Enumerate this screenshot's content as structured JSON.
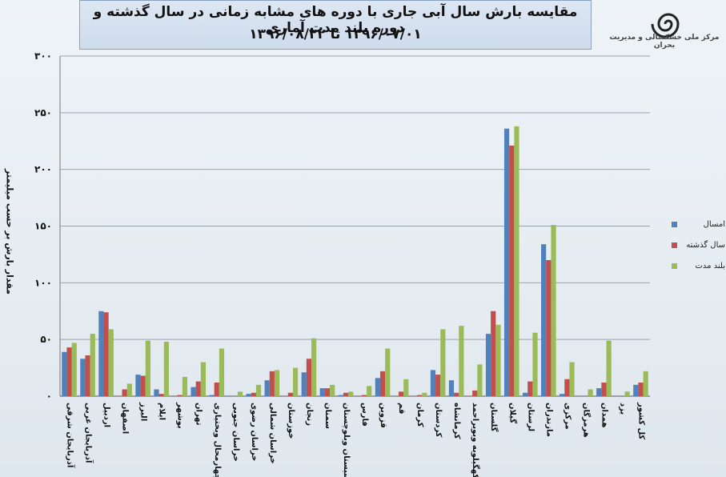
{
  "title": {
    "line1": "مقایسه بارش سال آبی جاری با دوره های مشابه زمانی در سال گذشته و دوره بلند مدت آماری",
    "line2": "۱۳۹۶/۰۷/۰۱ تا ۱۳۹۶/۰۸/۲۲"
  },
  "logo": {
    "caption": "مرکز ملی خشکسالی و مدیریت بحران",
    "icon": "drought-center-spiral-logo"
  },
  "colors": {
    "series_1": "#4f81bd",
    "series_2": "#c0504d",
    "series_3": "#9bbb59"
  },
  "chart_data": {
    "type": "bar",
    "ylabel": "مقدار بارش بر حسب میلیمتر",
    "ylim": [
      0,
      300
    ],
    "yticks": [
      "۰",
      "۵۰",
      "۱۰۰",
      "۱۵۰",
      "۲۰۰",
      "۲۵۰",
      "۳۰۰"
    ],
    "grid": true,
    "legend_position": "right",
    "categories": [
      "آذربایجان شرقی",
      "آذربایجان غربی",
      "اردبیل",
      "اصفهان",
      "البرز",
      "ایلام",
      "بوشهر",
      "تهران",
      "چهارمحال وبختیاری",
      "خراسان جنوبی",
      "خراسان رضوی",
      "خراسان شمالی",
      "خوزستان",
      "زنجان",
      "سمنان",
      "سیستان وبلوچستان",
      "فارس",
      "قزوین",
      "قم",
      "کرمان",
      "کردستان",
      "کرمانشاه",
      "کهگیلویه وبویراحمد",
      "گلستان",
      "گیلان",
      "لرستان",
      "مازندران",
      "مرکزی",
      "هرمزگان",
      "همدان",
      "یزد",
      "کل کشور"
    ],
    "series": [
      {
        "name": "امسال",
        "values": [
          39,
          33,
          75,
          0,
          19,
          6,
          0,
          8,
          1,
          0,
          2,
          14,
          0,
          21,
          7,
          1,
          0,
          16,
          0,
          0,
          23,
          14,
          0,
          55,
          236,
          3,
          134,
          2,
          0,
          7,
          0,
          10
        ]
      },
      {
        "name": "سال گذشته",
        "values": [
          43,
          36,
          74,
          6,
          18,
          2,
          1,
          13,
          12,
          0,
          3,
          22,
          3,
          33,
          7,
          3,
          1,
          22,
          4,
          1,
          19,
          3,
          5,
          75,
          221,
          13,
          120,
          15,
          0,
          12,
          0,
          12
        ]
      },
      {
        "name": "بلند مدت",
        "values": [
          47,
          55,
          59,
          11,
          49,
          48,
          17,
          30,
          42,
          4,
          10,
          23,
          25,
          51,
          10,
          4,
          9,
          42,
          15,
          3,
          59,
          62,
          28,
          63,
          238,
          56,
          151,
          30,
          6,
          49,
          4,
          22
        ]
      }
    ]
  }
}
